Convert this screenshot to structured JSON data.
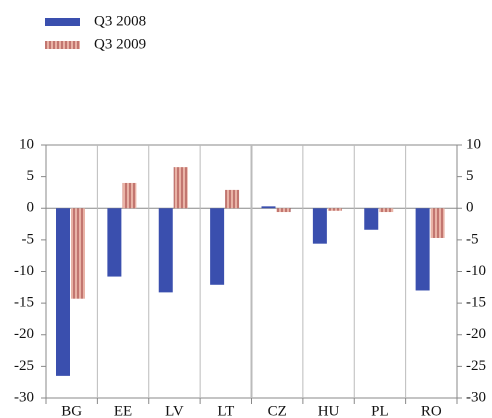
{
  "chart_data": {
    "type": "bar",
    "categories": [
      "BG",
      "EE",
      "LV",
      "LT",
      "CZ",
      "HU",
      "PL",
      "RO"
    ],
    "series": [
      {
        "name": "Q3 2008",
        "color": "#3a4fae",
        "values": [
          -26.5,
          -10.8,
          -13.3,
          -12.1,
          0.3,
          -5.6,
          -3.4,
          -13.0
        ]
      },
      {
        "name": "Q3 2009",
        "color": "#e9b3a6",
        "pattern": "stripes",
        "stripe_color": "#9a3a3a",
        "values": [
          -14.3,
          4.0,
          6.5,
          2.9,
          -0.6,
          -0.4,
          -0.6,
          -4.7
        ]
      }
    ],
    "ylim": [
      -30,
      10
    ],
    "yticks": [
      -30,
      -25,
      -20,
      -15,
      -10,
      -5,
      0,
      5,
      10
    ],
    "right_axis": true,
    "grid": false
  }
}
